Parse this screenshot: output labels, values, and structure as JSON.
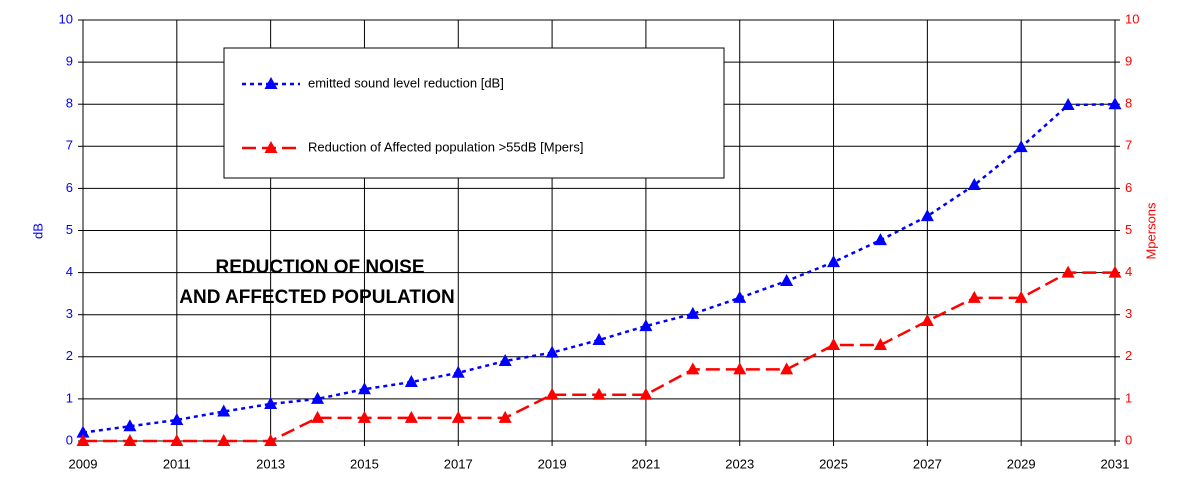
{
  "chart_data": {
    "type": "line",
    "title": [
      "REDUCTION OF NOISE",
      "AND AFFECTED POPULATION"
    ],
    "ylabel": "dB",
    "y2label": "Mpersons",
    "x": [
      2009,
      2010,
      2011,
      2012,
      2013,
      2014,
      2015,
      2016,
      2017,
      2018,
      2019,
      2020,
      2021,
      2022,
      2023,
      2024,
      2025,
      2026,
      2027,
      2028,
      2029,
      2030,
      2031
    ],
    "xlim": [
      2009,
      2031
    ],
    "xticks": [
      2009,
      2011,
      2013,
      2015,
      2017,
      2019,
      2021,
      2023,
      2025,
      2027,
      2029,
      2031
    ],
    "ylim": [
      0,
      10
    ],
    "yticks": [
      0,
      1,
      2,
      3,
      4,
      5,
      6,
      7,
      8,
      9,
      10
    ],
    "y2lim": [
      0,
      10
    ],
    "y2ticks": [
      0,
      1,
      2,
      3,
      4,
      5,
      6,
      7,
      8,
      9,
      10
    ],
    "grid": true,
    "series": [
      {
        "name": "emitted sound level reduction [dB]",
        "color": "#0000ff",
        "axis": "y",
        "values": [
          0.2,
          0.35,
          0.5,
          0.7,
          0.88,
          1.0,
          1.23,
          1.4,
          1.62,
          1.9,
          2.1,
          2.4,
          2.73,
          3.02,
          3.4,
          3.8,
          4.25,
          4.77,
          5.34,
          6.08,
          6.98,
          7.98,
          8.0
        ]
      },
      {
        "name": "Reduction of Affected population >55dB [Mpers]",
        "color": "#ff0000",
        "axis": "y2",
        "values": [
          0,
          0,
          0,
          0,
          0,
          0.55,
          0.55,
          0.55,
          0.55,
          0.55,
          1.1,
          1.1,
          1.1,
          1.7,
          1.7,
          1.7,
          2.28,
          2.28,
          2.85,
          3.4,
          3.4,
          4.0,
          4.0
        ]
      }
    ]
  }
}
